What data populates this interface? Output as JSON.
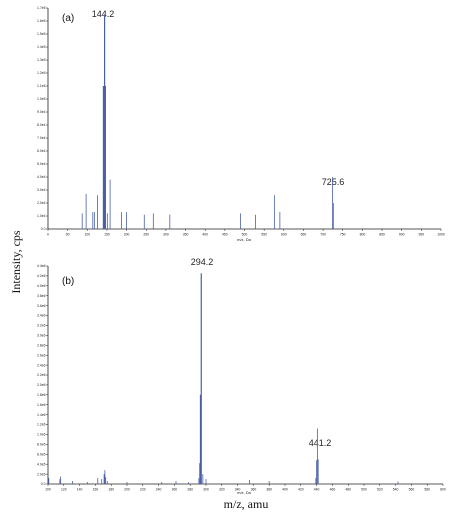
{
  "figure": {
    "ylabel": "Intensity, cps",
    "xlabel": "m/z, amu",
    "colors": {
      "peak": "#4a5fa8",
      "axis": "#222222"
    }
  },
  "chart_data": [
    {
      "type": "bar",
      "panel": "(a)",
      "xunit": "m/z, Da",
      "xlim": [
        0,
        1000
      ],
      "ylim": [
        0,
        1700000
      ],
      "xticks": [
        "0",
        "50",
        "100",
        "150",
        "200",
        "250",
        "300",
        "350",
        "400",
        "450",
        "500",
        "550",
        "600",
        "650",
        "700",
        "750",
        "800",
        "850",
        "900",
        "950",
        "1000"
      ],
      "yticks": [
        "0.0",
        "1.0e4",
        "2.0e4",
        "3.0e4",
        "4.0e4",
        "5.0e4",
        "6.0e4",
        "7.0e4",
        "8.0e4",
        "9.0e4",
        "1.0e5",
        "1.1e5",
        "1.2e5",
        "1.3e5",
        "1.4e5",
        "1.5e5",
        "1.6e5",
        "1.7e5"
      ],
      "peak_labels": [
        "144.2",
        "725.6"
      ],
      "x": [
        87,
        97,
        114,
        118,
        126,
        141,
        144,
        146,
        151,
        158,
        187,
        200,
        245,
        268,
        310,
        490,
        528,
        576,
        590,
        724,
        726
      ],
      "y": [
        120000,
        270000,
        130000,
        130000,
        260000,
        1100000,
        1650000,
        1100000,
        120000,
        380000,
        130000,
        130000,
        110000,
        120000,
        110000,
        120000,
        110000,
        260000,
        130000,
        400000,
        200000
      ]
    },
    {
      "type": "bar",
      "panel": "(b)",
      "xunit": "m/z, Da",
      "xlim": [
        100,
        600
      ],
      "ylim": [
        0,
        4400000
      ],
      "xticks": [
        "100",
        "120",
        "140",
        "160",
        "180",
        "200",
        "220",
        "240",
        "260",
        "280",
        "300",
        "320",
        "340",
        "360",
        "380",
        "400",
        "420",
        "440",
        "460",
        "480",
        "500",
        "520",
        "540",
        "560",
        "580",
        "600"
      ],
      "yticks": [
        "0.0",
        "2.0e5",
        "4.0e5",
        "6.0e5",
        "8.0e5",
        "1.0e6",
        "1.2e6",
        "1.4e6",
        "1.6e6",
        "1.8e6",
        "2.0e6",
        "2.2e6",
        "2.4e6",
        "2.6e6",
        "2.8e6",
        "3.0e6",
        "3.2e6",
        "3.4e6",
        "3.6e6",
        "3.8e6",
        "4.0e6",
        "4.2e6",
        "4.4e6"
      ],
      "peak_labels": [
        "294.2",
        "441.2"
      ],
      "x": [
        101,
        115,
        116,
        131,
        150,
        163,
        168,
        171,
        172,
        173,
        175,
        200,
        244,
        262,
        278,
        291,
        292,
        293,
        294,
        296,
        300,
        355,
        380,
        439,
        440,
        441,
        442,
        543
      ],
      "y": [
        120000,
        100000,
        150000,
        60000,
        40000,
        120000,
        100000,
        200000,
        280000,
        140000,
        60000,
        40000,
        40000,
        60000,
        40000,
        120000,
        420000,
        1800000,
        4250000,
        200000,
        100000,
        80000,
        60000,
        120000,
        480000,
        1120000,
        500000,
        50000
      ]
    }
  ]
}
